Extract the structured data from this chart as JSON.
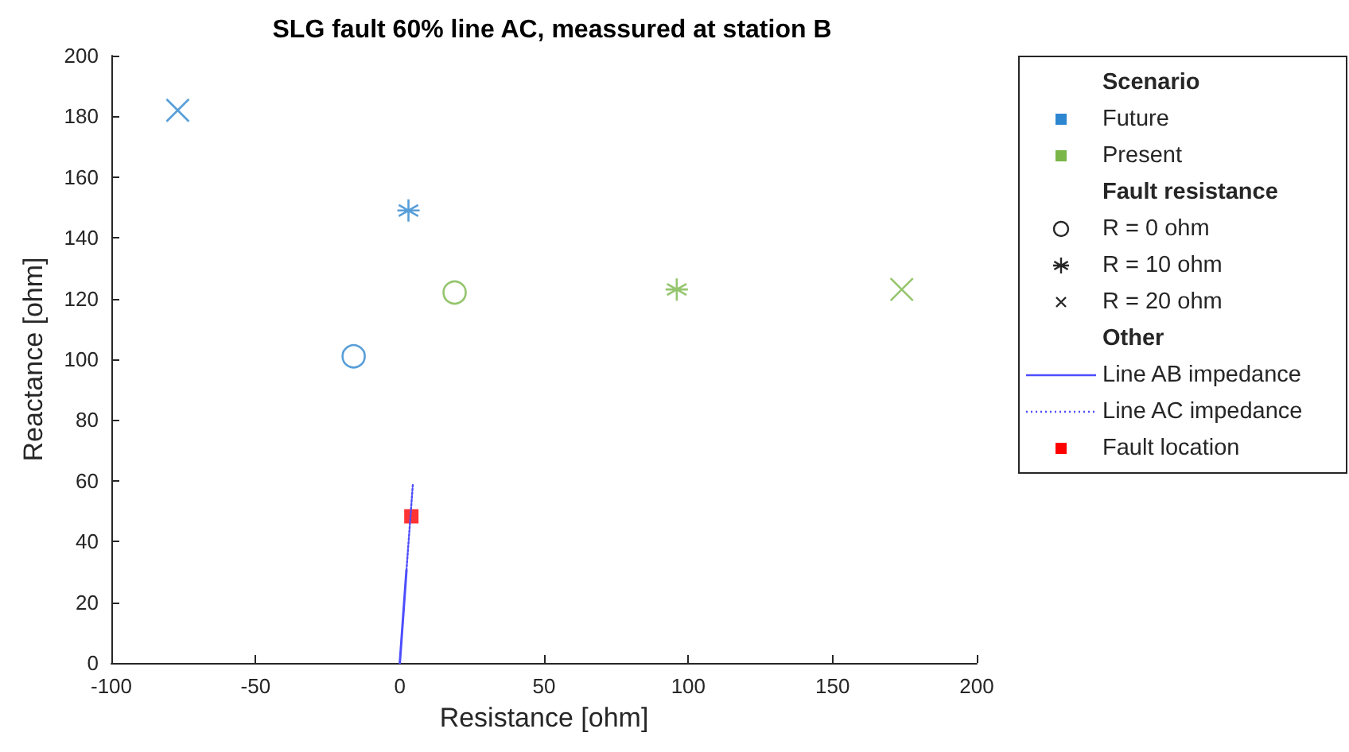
{
  "chart_data": {
    "type": "scatter",
    "title": "SLG fault 60% line AC, meassured at station B",
    "xlabel": "Resistance [ohm]",
    "ylabel": "Reactance [ohm]",
    "xlim": [
      -100,
      200
    ],
    "xticks": [
      -100,
      -50,
      0,
      50,
      100,
      150,
      200
    ],
    "ylim": [
      0,
      200
    ],
    "yticks": [
      0,
      20,
      40,
      60,
      80,
      100,
      120,
      140,
      160,
      180,
      200
    ],
    "grid": false,
    "legend": "right",
    "legend_title": "Scenario",
    "annotations": [
      "Fault resistance",
      "R = 0 ohm",
      "R = 10 ohm",
      "R = 20 ohm",
      "Other"
    ],
    "series": [
      {
        "name": "Future",
        "color": "#2d86d0",
        "marker": [
          "circle",
          "star",
          "cross"
        ],
        "x": [
          -16,
          3,
          -77
        ],
        "values": [
          101,
          149,
          182
        ]
      },
      {
        "name": "Present",
        "color": "#7ab648",
        "marker": [
          "circle",
          "star",
          "cross"
        ],
        "x": [
          19,
          96,
          174
        ],
        "values": [
          122,
          123,
          123
        ]
      },
      {
        "name": "Line AB impedance",
        "type": "line",
        "color": "#4d4dff",
        "line_style": "solid",
        "x": [
          0,
          2.3
        ],
        "values": [
          0,
          30.5
        ]
      },
      {
        "name": "Line AC impedance",
        "type": "line",
        "color": "#4d4dff",
        "line_style": "dotted",
        "x": [
          2.3,
          4.5
        ],
        "values": [
          30.5,
          58.6
        ]
      },
      {
        "name": "Fault location",
        "color": "#ff0000",
        "marker": "square",
        "x": [
          4
        ],
        "values": [
          48.3
        ]
      }
    ]
  }
}
